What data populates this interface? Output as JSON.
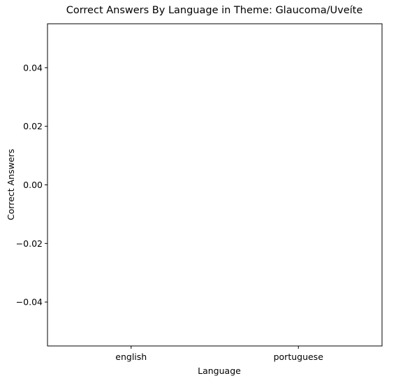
{
  "chart_data": {
    "type": "bar",
    "title": "Correct Answers By Language in Theme: Glaucoma/Uveíte",
    "xlabel": "Language",
    "ylabel": "Correct Answers",
    "categories": [
      "english",
      "portuguese"
    ],
    "values": [
      0,
      0
    ],
    "ylim": [
      -0.055,
      0.055
    ],
    "yticks": [
      0.04,
      0.02,
      0.0,
      -0.02,
      -0.04
    ],
    "ytick_labels": [
      "0.04",
      "0.02",
      "0.00",
      "−0.02",
      "−0.04"
    ],
    "grid": false,
    "legend": "none"
  }
}
